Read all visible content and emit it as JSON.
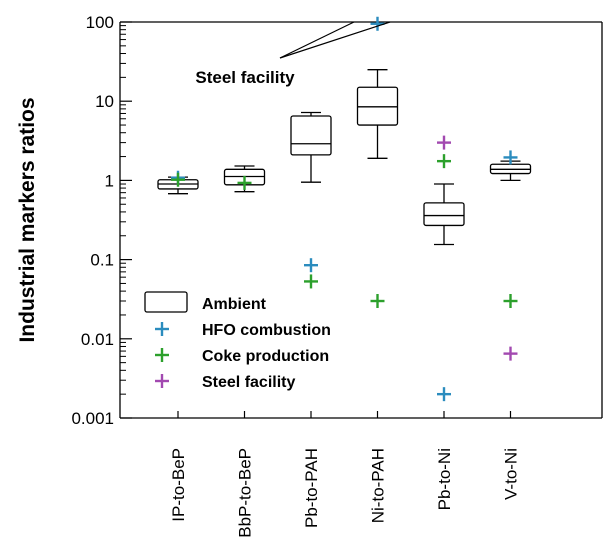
{
  "chart_data": {
    "type": "box",
    "ylabel": "Industrial markers ratios",
    "yscale": "log",
    "ylim": [
      0.001,
      100
    ],
    "yticks": [
      {
        "value": 0.001,
        "label": "0.001"
      },
      {
        "value": 0.01,
        "label": "0.01"
      },
      {
        "value": 0.1,
        "label": "0.1"
      },
      {
        "value": 1,
        "label": "1"
      },
      {
        "value": 10,
        "label": "10"
      },
      {
        "value": 100,
        "label": "100"
      }
    ],
    "categories": [
      "IP-to-BeP",
      "BbP-to-BeP",
      "Pb-to-PAH",
      "Ni-to-PAH",
      "Pb-to-Ni",
      "V-to-Ni"
    ],
    "boxes": [
      {
        "category": "IP-to-BeP",
        "whisker_low": 0.68,
        "q1": 0.78,
        "median": 0.9,
        "q3": 1.02,
        "whisker_high": 1.1
      },
      {
        "category": "BbP-to-BeP",
        "whisker_low": 0.72,
        "q1": 0.88,
        "median": 1.12,
        "q3": 1.38,
        "whisker_high": 1.52
      },
      {
        "category": "Pb-to-PAH",
        "whisker_low": 0.95,
        "q1": 2.1,
        "median": 2.9,
        "q3": 6.5,
        "whisker_high": 7.2
      },
      {
        "category": "Ni-to-PAH",
        "whisker_low": 1.9,
        "q1": 5.0,
        "median": 8.5,
        "q3": 15.0,
        "whisker_high": 25.0
      },
      {
        "category": "Pb-to-Ni",
        "whisker_low": 0.155,
        "q1": 0.27,
        "median": 0.36,
        "q3": 0.52,
        "whisker_high": 0.9
      },
      {
        "category": "V-to-Ni",
        "whisker_low": 1.0,
        "q1": 1.22,
        "median": 1.38,
        "q3": 1.6,
        "whisker_high": 1.75
      }
    ],
    "markers": [
      {
        "series": "HFO combustion",
        "category": "IP-to-BeP",
        "value": 1.08
      },
      {
        "series": "Coke production",
        "category": "IP-to-BeP",
        "value": 1.02
      },
      {
        "series": "Coke production",
        "category": "BbP-to-BeP",
        "value": 0.93
      },
      {
        "series": "HFO combustion",
        "category": "Pb-to-PAH",
        "value": 0.085
      },
      {
        "series": "Coke production",
        "category": "Pb-to-PAH",
        "value": 0.053
      },
      {
        "series": "HFO combustion",
        "category": "Ni-to-PAH",
        "value": 95
      },
      {
        "series": "Coke production",
        "category": "Ni-to-PAH",
        "value": 0.03
      },
      {
        "series": "Steel facility",
        "category": "Pb-to-Ni",
        "value": 3.0
      },
      {
        "series": "Coke production",
        "category": "Pb-to-Ni",
        "value": 1.75
      },
      {
        "series": "HFO combustion",
        "category": "Pb-to-Ni",
        "value": 0.002
      },
      {
        "series": "HFO combustion",
        "category": "V-to-Ni",
        "value": 1.95
      },
      {
        "series": "Coke production",
        "category": "V-to-Ni",
        "value": 0.03
      },
      {
        "series": "Steel facility",
        "category": "V-to-Ni",
        "value": 0.0065
      }
    ],
    "series_colors": {
      "HFO combustion": "#2b8cbe",
      "Coke production": "#2ca02c",
      "Steel facility": "#a249b0"
    },
    "legend": {
      "placement": "bottom-left",
      "items": [
        {
          "label": "Ambient",
          "marker": "box"
        },
        {
          "label": "HFO combustion",
          "marker": "plus",
          "series": "HFO combustion"
        },
        {
          "label": "Coke production",
          "marker": "plus",
          "series": "Coke production"
        },
        {
          "label": "Steel facility",
          "marker": "plus",
          "series": "Steel facility"
        }
      ]
    },
    "annotation": {
      "text": "Steel facility",
      "target": "Ni-to-PAH"
    }
  }
}
